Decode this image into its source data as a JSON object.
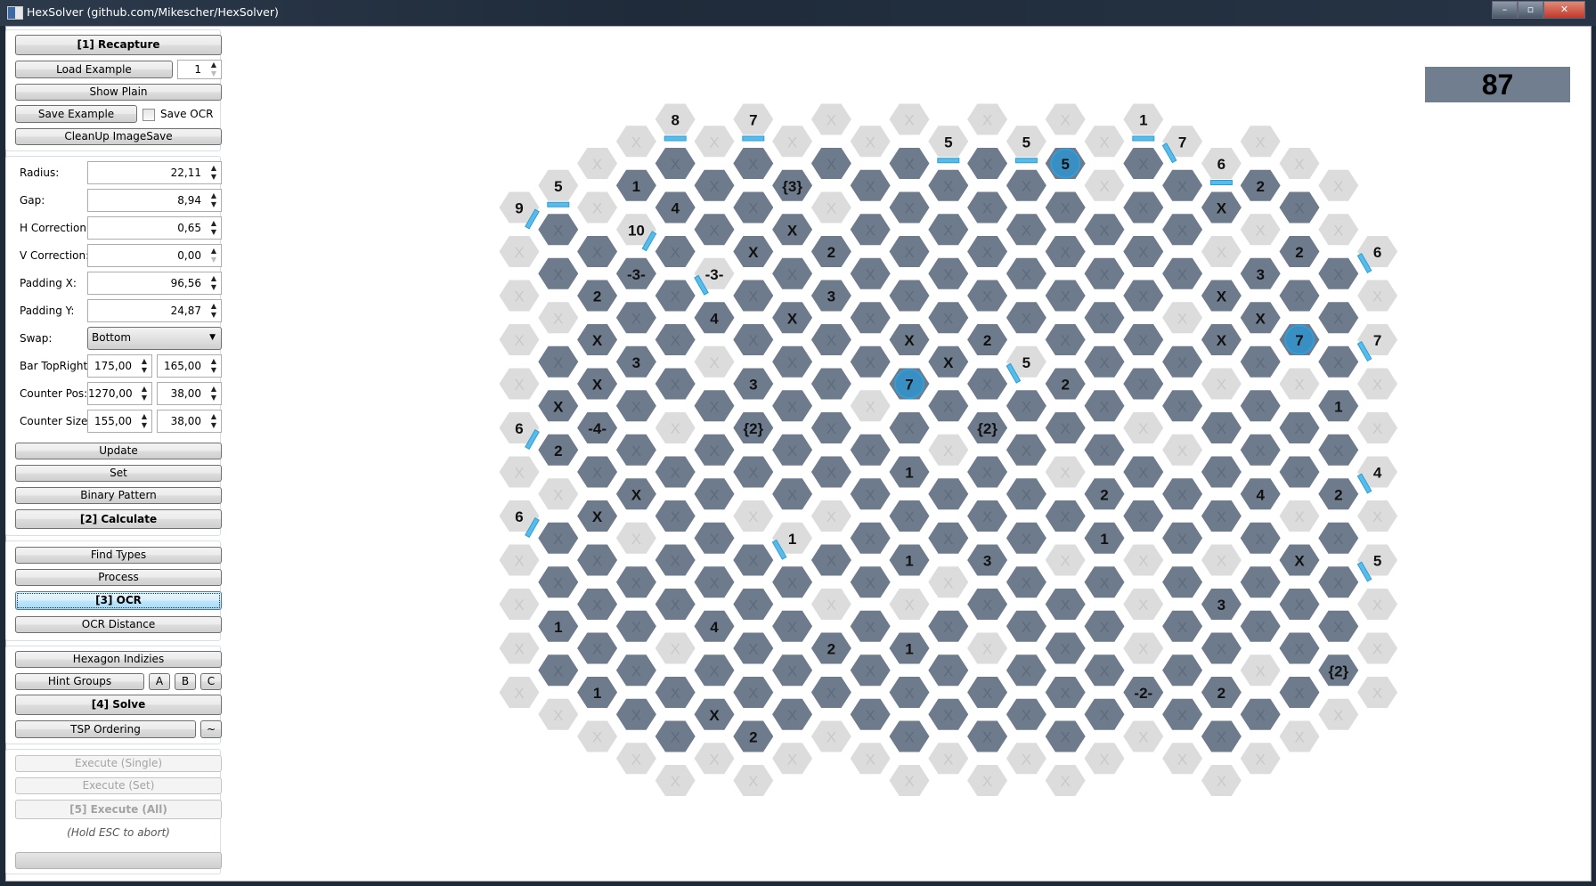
{
  "window": {
    "title": "HexSolver (github.com/Mikescher/HexSolver)",
    "minimize": "–",
    "maximize": "▫",
    "close": "✕"
  },
  "panel": {
    "recapture": "[1] Recapture",
    "load_example": "Load Example",
    "example_index": "1",
    "show_plain": "Show Plain",
    "save_example": "Save Example",
    "save_ocr_label": "Save OCR",
    "save_ocr_checked": false,
    "cleanup": "CleanUp ImageSave",
    "radius_label": "Radius:",
    "radius": "22,11",
    "gap_label": "Gap:",
    "gap": "8,94",
    "hcorr_label": "H Correction:",
    "hcorr": "0,65",
    "vcorr_label": "V Correction:",
    "vcorr": "0,00",
    "padx_label": "Padding X:",
    "padx": "96,56",
    "pady_label": "Padding Y:",
    "pady": "24,87",
    "swap_label": "Swap:",
    "swap": "Bottom",
    "bar_label": "Bar TopRight:",
    "bar_x": "175,00",
    "bar_y": "165,00",
    "cpos_label": "Counter Pos:",
    "cpos_x": "1270,00",
    "cpos_y": "38,00",
    "csize_label": "Counter Size:",
    "csize_x": "155,00",
    "csize_y": "38,00",
    "update": "Update",
    "set": "Set",
    "binary_pattern": "Binary Pattern",
    "calculate": "[2] Calculate",
    "find_types": "Find Types",
    "process": "Process",
    "ocr": "[3] OCR",
    "ocr_distance": "OCR Distance",
    "hexagon_indizies": "Hexagon Indizies",
    "hint_groups": "Hint Groups",
    "hint_a": "A",
    "hint_b": "B",
    "hint_c": "C",
    "solve": "[4] Solve",
    "tsp": "TSP Ordering",
    "tsp_extra": "~",
    "exec_single": "Execute (Single)",
    "exec_set": "Execute (Set)",
    "exec_all": "[5] Execute (All)",
    "abort_hint": "(Hold ESC to abort)",
    "progress": 0
  },
  "counter": "87",
  "colors": {
    "dark": "#6d7b8c",
    "light": "#dcdcdc",
    "blue": "#3a8fc2",
    "bar": "#5bbbe8",
    "counter_bg": "#717e8f"
  },
  "board": {
    "legend": {
      "d": "dark unrevealed cell",
      "l": "light cell",
      "b": "blue revealed cell",
      "s/se/sw": "line hint direction"
    },
    "columns": [
      {
        "start": 4,
        "cells": [
          "l:9:se",
          "l",
          "l",
          "l",
          "l",
          "l:6:se",
          "l",
          "l:6:se",
          "l",
          "l",
          "l",
          "l"
        ]
      },
      {
        "start": 3,
        "cells": [
          "l:5:s",
          "d",
          "d",
          "l",
          "d",
          "d:X",
          "d:2",
          "l",
          "d",
          "d",
          "d:1",
          "d",
          "l"
        ]
      },
      {
        "start": 2,
        "cells": [
          "l",
          "l",
          "d",
          "d:2",
          "d:X",
          "d:X",
          "d:-4-",
          "d",
          "d:X",
          "d",
          "d",
          "d",
          "d:1",
          "l"
        ]
      },
      {
        "start": 1,
        "cells": [
          "l",
          "d:1",
          "l:10:se",
          "d:-3-",
          "d",
          "d:3",
          "d",
          "d",
          "d:X",
          "l",
          "d",
          "d",
          "d",
          "d",
          "l"
        ]
      },
      {
        "start": 0,
        "cells": [
          "l:8:s",
          "d",
          "d:4",
          "d",
          "d",
          "d",
          "d",
          "l",
          "d",
          "d",
          "d",
          "d",
          "l",
          "d",
          "d",
          "l"
        ]
      },
      {
        "start": 1,
        "cells": [
          "l",
          "d",
          "d",
          "l:-3-:sw",
          "d:4",
          "l",
          "d",
          "d",
          "d",
          "d",
          "d",
          "d:4",
          "d",
          "d:X",
          "l"
        ]
      },
      {
        "start": 0,
        "cells": [
          "l:7:s",
          "d",
          "d",
          "d:X",
          "d",
          "d",
          "d:3",
          "d:{2}",
          "d",
          "l",
          "d",
          "d",
          "d",
          "d",
          "d:2",
          "l"
        ]
      },
      {
        "start": 1,
        "cells": [
          "l",
          "d:{3}",
          "d:X",
          "d",
          "d:X",
          "d",
          "d",
          "d",
          "d",
          "l:1:sw",
          "d",
          "d",
          "d",
          "d",
          "l"
        ]
      },
      {
        "start": 0,
        "cells": [
          "l",
          "d",
          "l",
          "d:2",
          "d:3",
          "d",
          "d",
          "d",
          "d",
          "l",
          "d",
          "l",
          "d:2",
          "d",
          "l"
        ]
      },
      {
        "start": 1,
        "cells": [
          "l",
          "d",
          "d",
          "d",
          "d",
          "d",
          "l",
          "d",
          "d",
          "d",
          "d",
          "d",
          "d",
          "d",
          "l"
        ]
      },
      {
        "start": 0,
        "cells": [
          "l",
          "d",
          "d",
          "d",
          "d",
          "d:X",
          "b:7",
          "d",
          "d:1",
          "d",
          "d:1",
          "l",
          "d:1",
          "d",
          "d",
          "l"
        ]
      },
      {
        "start": 1,
        "cells": [
          "l:5:s",
          "d",
          "d",
          "d",
          "d",
          "d:X",
          "d",
          "l",
          "d",
          "d",
          "l",
          "d",
          "d",
          "d",
          "l"
        ]
      },
      {
        "start": 0,
        "cells": [
          "l",
          "d",
          "d",
          "d",
          "d",
          "d:2",
          "d",
          "d:{2}",
          "d",
          "d",
          "d:3",
          "d",
          "l",
          "d",
          "d",
          "l"
        ]
      },
      {
        "start": 1,
        "cells": [
          "l:5:s",
          "d",
          "d",
          "d",
          "d",
          "l:5:sw",
          "d",
          "d",
          "d",
          "d",
          "d",
          "d",
          "d",
          "d",
          "l"
        ]
      },
      {
        "start": 0,
        "cells": [
          "l",
          "b:5",
          "d",
          "d",
          "d",
          "d",
          "d:2",
          "d",
          "l",
          "d",
          "l",
          "d",
          "d",
          "d",
          "d",
          "l"
        ]
      },
      {
        "start": 1,
        "cells": [
          "l",
          "l",
          "d",
          "d",
          "d",
          "d",
          "d",
          "d",
          "d:2",
          "d:1",
          "d",
          "d",
          "d",
          "d",
          "l"
        ]
      },
      {
        "start": 0,
        "cells": [
          "l:1:s",
          "d",
          "d",
          "d",
          "d",
          "d",
          "d",
          "l",
          "d",
          "d",
          "l",
          "l",
          "l",
          "d:-2-",
          "l"
        ]
      },
      {
        "start": 1,
        "cells": [
          "l:7:sw",
          "d",
          "d",
          "d",
          "l",
          "d",
          "d",
          "l",
          "d",
          "d",
          "d",
          "d",
          "d",
          "d",
          "l"
        ]
      },
      {
        "start": 2,
        "cells": [
          "l:6:s",
          "d:X",
          "l",
          "d:X",
          "d:X",
          "l",
          "d",
          "d",
          "d",
          "l",
          "d:3",
          "d",
          "d:2",
          "d",
          "l"
        ]
      },
      {
        "start": 1,
        "cells": [
          "l",
          "d:2",
          "l",
          "d:3",
          "d:X",
          "d",
          "d",
          "d",
          "d:4",
          "d",
          "d",
          "d",
          "l",
          "d",
          "l"
        ]
      },
      {
        "start": 2,
        "cells": [
          "l",
          "d",
          "d:2",
          "d",
          "b:7",
          "l",
          "d",
          "d",
          "l",
          "d:X",
          "d",
          "d",
          "d",
          "l"
        ]
      },
      {
        "start": 3,
        "cells": [
          "l",
          "l",
          "d",
          "d",
          "d",
          "d:1",
          "d",
          "d:2",
          "d",
          "d",
          "d",
          "d:{2}",
          "l"
        ]
      },
      {
        "start": 6,
        "cells": [
          "l:6:sw",
          "l",
          "l:7:sw",
          "l",
          "l",
          "l:4:sw",
          "l",
          "l:5:sw",
          "l",
          "l",
          "l"
        ]
      }
    ]
  }
}
